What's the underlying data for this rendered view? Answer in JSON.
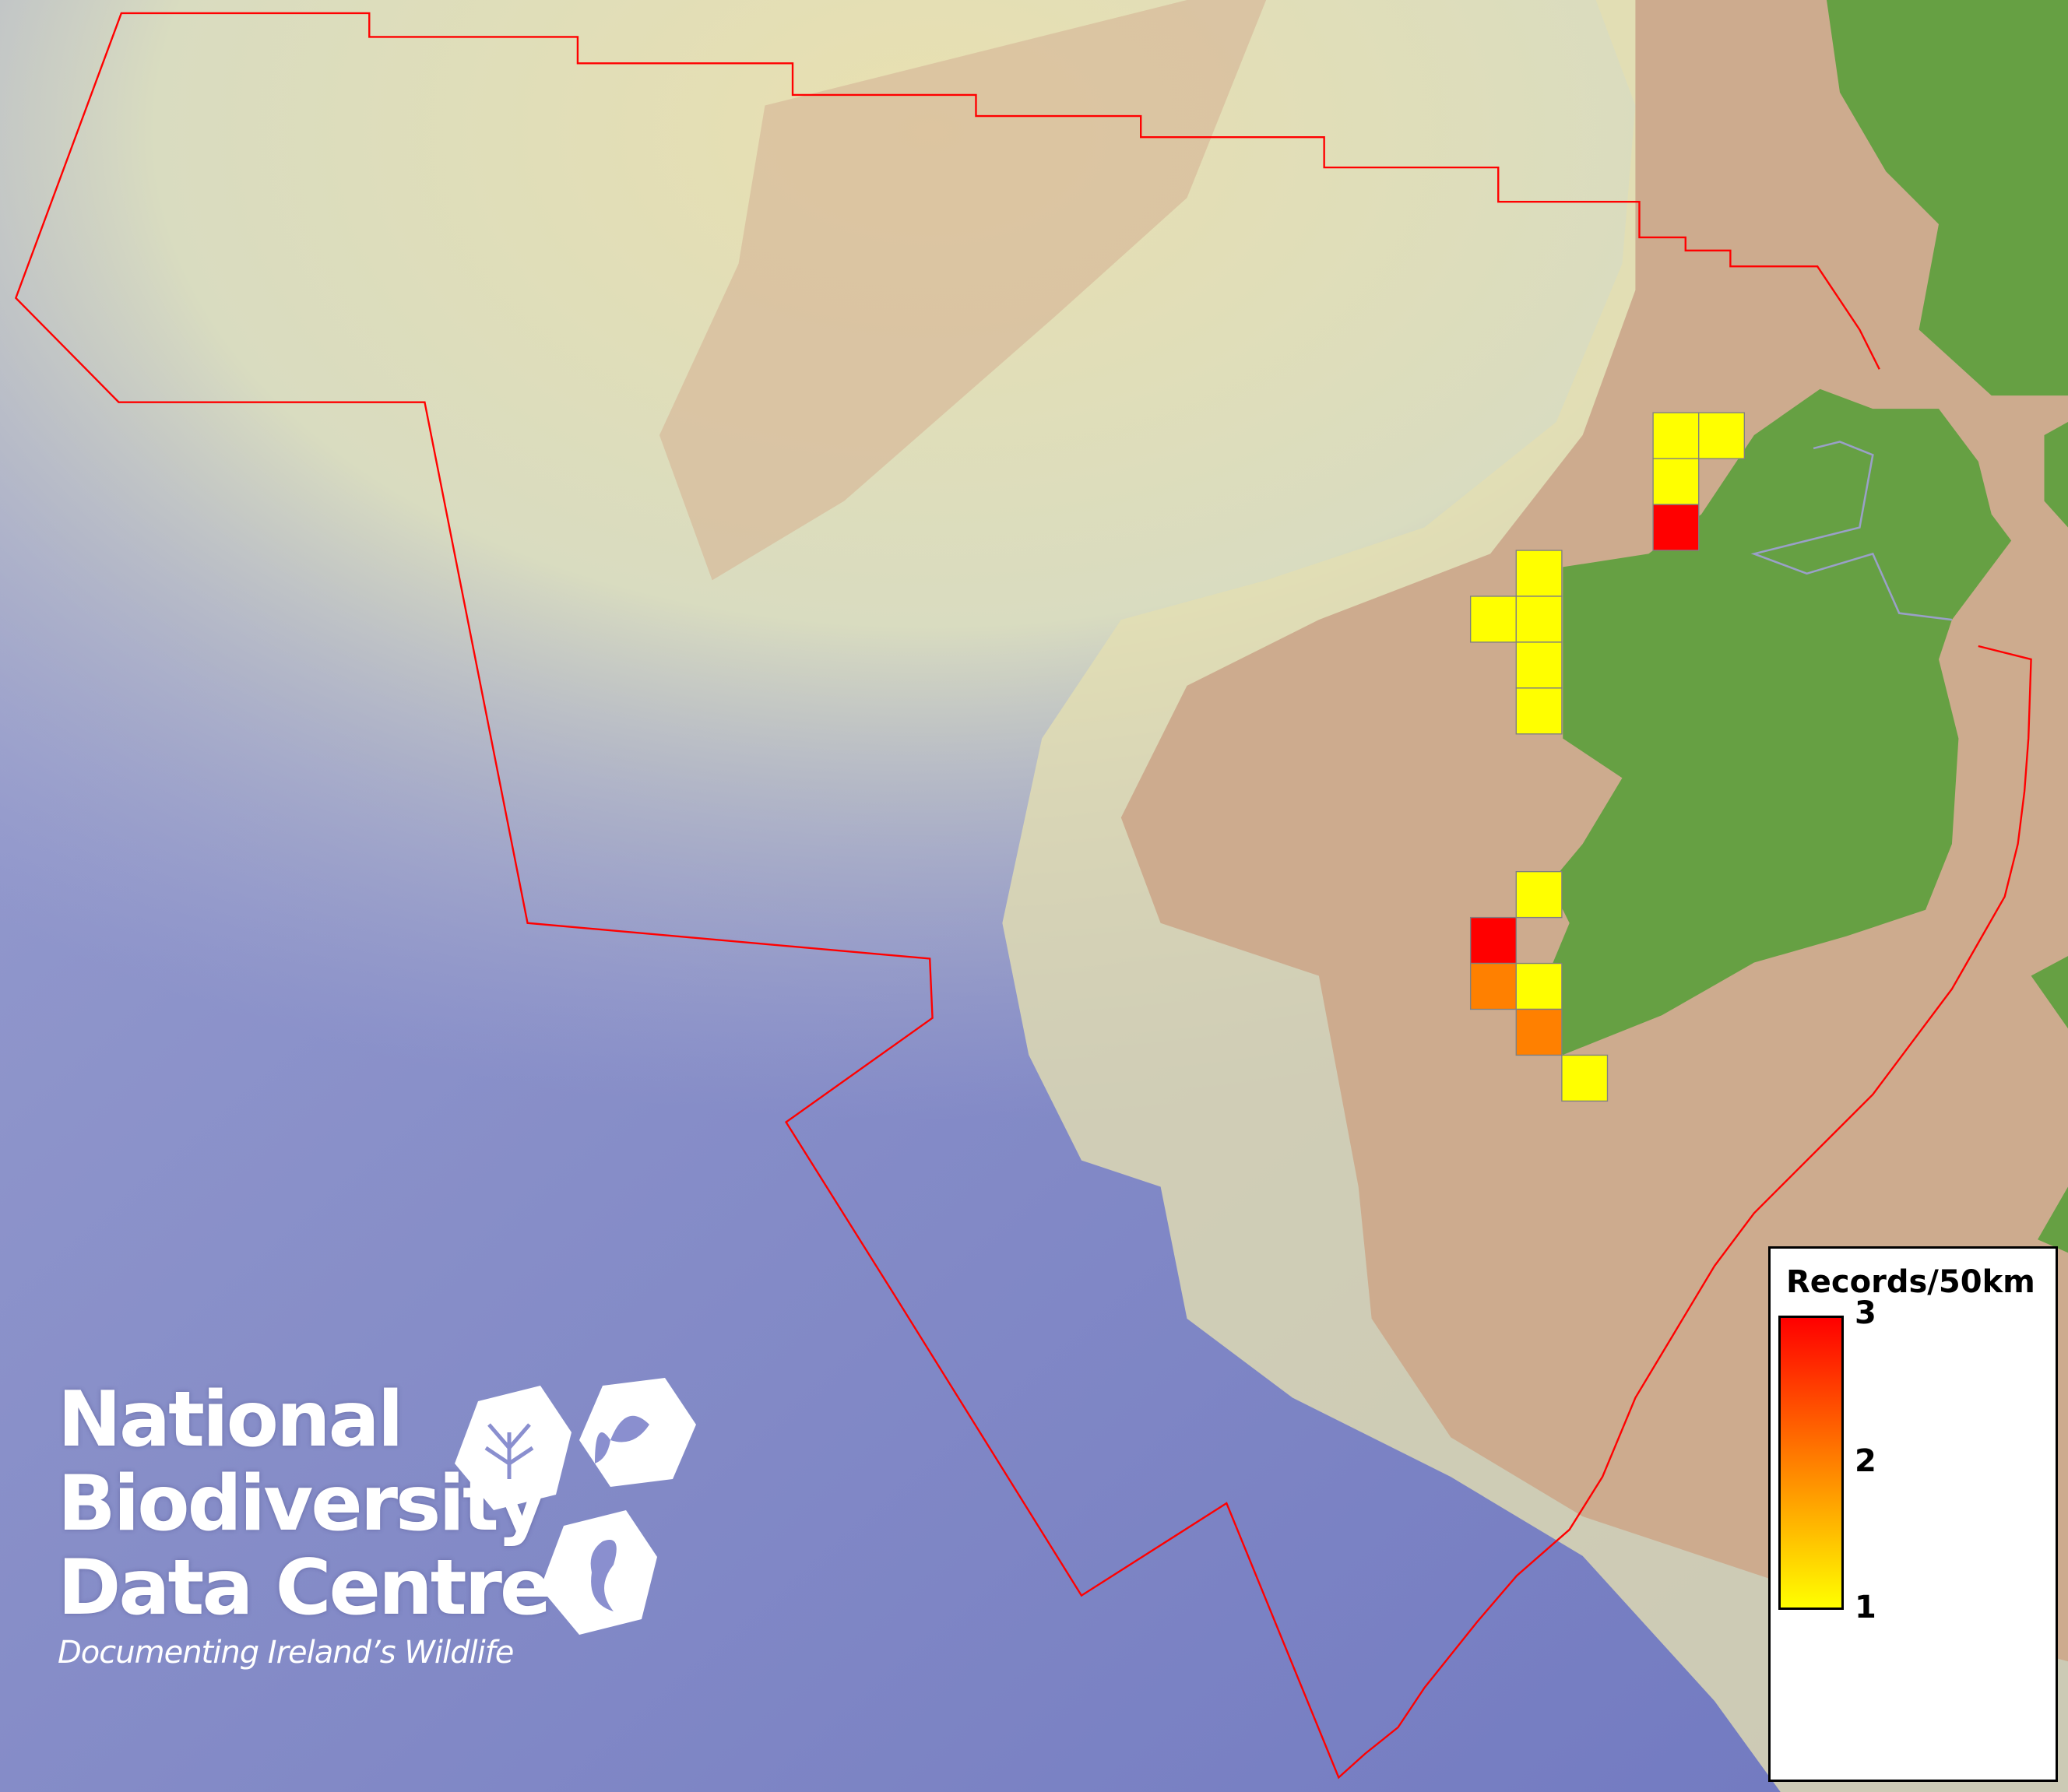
{
  "map": {
    "colors": {
      "ocean_deep": "#7f87c6",
      "shelf": "#e6e2b4",
      "land_sea_floor": "#cdab8e",
      "land": "#66a043",
      "boundary": "#ff0000",
      "cell_border": "#808080"
    },
    "legend": {
      "title": "Records/50km",
      "min_label": "1",
      "mid_label": "2",
      "max_label": "3",
      "color_min": "#ffff00",
      "color_mid": "#ff8000",
      "color_max": "#ff0000"
    },
    "grid_cells": [
      {
        "col": 4,
        "row": 0,
        "records": 1
      },
      {
        "col": 5,
        "row": 0,
        "records": 1
      },
      {
        "col": 4,
        "row": 1,
        "records": 1
      },
      {
        "col": 4,
        "row": 2,
        "records": 3
      },
      {
        "col": 1,
        "row": 3,
        "records": 1
      },
      {
        "col": 0,
        "row": 4,
        "records": 1
      },
      {
        "col": 1,
        "row": 4,
        "records": 1
      },
      {
        "col": 1,
        "row": 5,
        "records": 1
      },
      {
        "col": 1,
        "row": 6,
        "records": 1
      },
      {
        "col": 1,
        "row": 10,
        "records": 1
      },
      {
        "col": 0,
        "row": 11,
        "records": 3
      },
      {
        "col": 0,
        "row": 12,
        "records": 2
      },
      {
        "col": 1,
        "row": 12,
        "records": 1
      },
      {
        "col": 1,
        "row": 13,
        "records": 2
      },
      {
        "col": 2,
        "row": 14,
        "records": 1
      }
    ]
  },
  "logo": {
    "line1": "National",
    "line2": "Biodiversity",
    "line3": "Data Centre",
    "tagline": "Documenting Ireland’s Wildlife"
  }
}
